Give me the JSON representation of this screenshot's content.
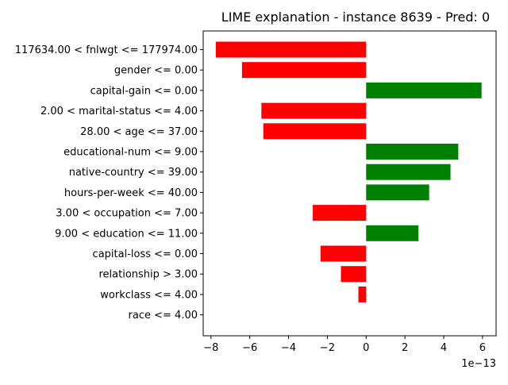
{
  "chart_data": {
    "type": "bar",
    "orientation": "horizontal",
    "title": "LIME explanation - instance 8639 - Pred: 0",
    "xlabel": "",
    "ylabel": "",
    "x_offset_label": "1e−13",
    "x_scale_exponent": -13,
    "xlim": [
      -8.4,
      6.7
    ],
    "x_ticks": [
      -8,
      -6,
      -4,
      -2,
      0,
      2,
      4,
      6
    ],
    "x_tick_labels": [
      "−8",
      "−6",
      "−4",
      "−2",
      "0",
      "2",
      "4",
      "6"
    ],
    "grid": false,
    "legend": "none",
    "positive_color": "#008000",
    "negative_color": "#ff0000",
    "categories": [
      "117634.00 < fnlwgt <= 177974.00",
      "gender <= 0.00",
      "capital-gain <= 0.00",
      "2.00 < marital-status <= 4.00",
      "28.00 < age <= 37.00",
      "educational-num <= 9.00",
      "native-country <= 39.00",
      "hours-per-week <= 40.00",
      "3.00 < occupation <= 7.00",
      "9.00 < education <= 11.00",
      "capital-loss <= 0.00",
      "relationship > 3.00",
      "workclass <= 4.00",
      "race <= 4.00"
    ],
    "values": [
      -7.75,
      -6.4,
      5.95,
      -5.4,
      -5.3,
      4.75,
      4.35,
      3.25,
      -2.75,
      2.7,
      -2.35,
      -1.3,
      -0.4,
      0.0
    ]
  }
}
